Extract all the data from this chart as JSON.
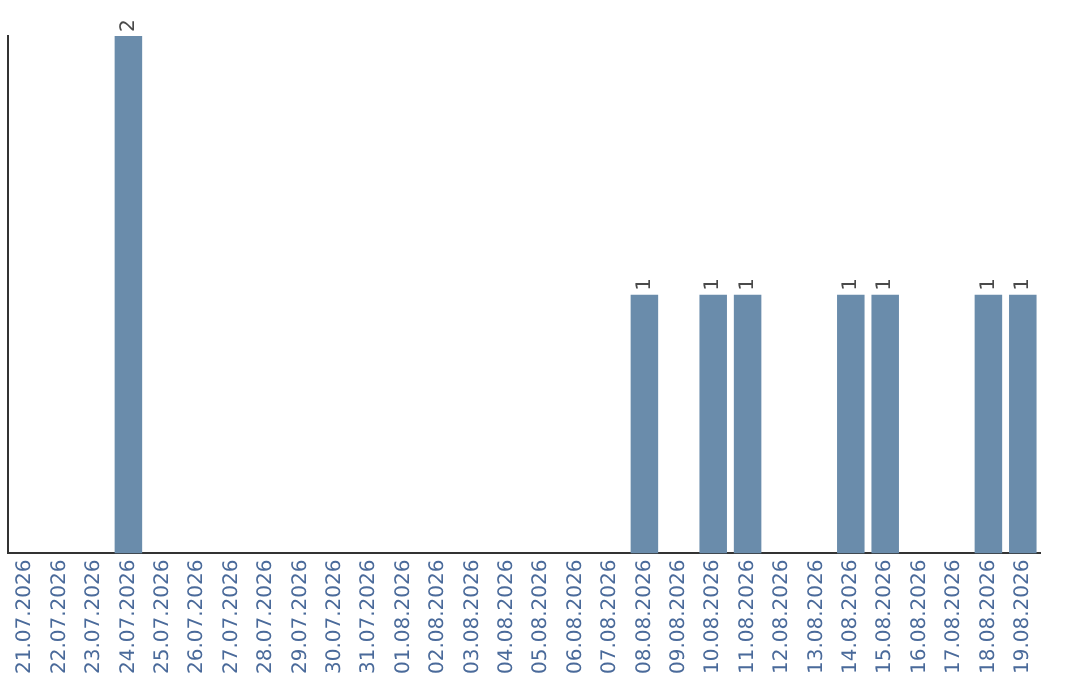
{
  "chart_data": {
    "type": "bar",
    "categories": [
      "21.07.2026",
      "22.07.2026",
      "23.07.2026",
      "24.07.2026",
      "25.07.2026",
      "26.07.2026",
      "27.07.2026",
      "28.07.2026",
      "29.07.2026",
      "30.07.2026",
      "31.07.2026",
      "01.08.2026",
      "02.08.2026",
      "03.08.2026",
      "04.08.2026",
      "05.08.2026",
      "06.08.2026",
      "07.08.2026",
      "08.08.2026",
      "09.08.2026",
      "10.08.2026",
      "11.08.2026",
      "12.08.2026",
      "13.08.2026",
      "14.08.2026",
      "15.08.2026",
      "16.08.2026",
      "17.08.2026",
      "18.08.2026",
      "19.08.2026"
    ],
    "values": [
      0,
      0,
      0,
      2,
      0,
      0,
      0,
      0,
      0,
      0,
      0,
      0,
      0,
      0,
      0,
      0,
      0,
      0,
      1,
      0,
      1,
      1,
      0,
      0,
      1,
      1,
      0,
      0,
      1,
      1
    ],
    "value_labels": [
      null,
      null,
      null,
      "2",
      null,
      null,
      null,
      null,
      null,
      null,
      null,
      null,
      null,
      null,
      null,
      null,
      null,
      null,
      "1",
      null,
      "1",
      "1",
      null,
      null,
      "1",
      "1",
      null,
      null,
      "1",
      "1"
    ],
    "color": "#6a8cab",
    "grid": false,
    "legend": false,
    "tick_labels": "x"
  }
}
